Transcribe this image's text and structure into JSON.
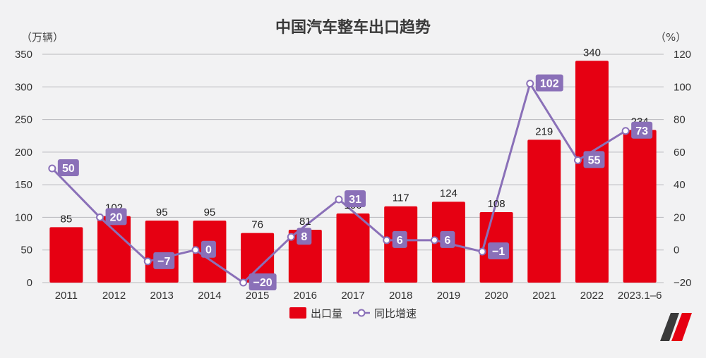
{
  "chart_data": {
    "type": "bar+line",
    "title": "中国汽车整车出口趋势",
    "left_axis_unit": "（万辆）",
    "right_axis_unit": "（%）",
    "categories": [
      "2011",
      "2012",
      "2013",
      "2014",
      "2015",
      "2016",
      "2017",
      "2018",
      "2019",
      "2020",
      "2021",
      "2022",
      "2023.1–6"
    ],
    "series": [
      {
        "name": "出口量",
        "type": "bar",
        "axis": "left",
        "color": "#e60012",
        "values": [
          85,
          102,
          95,
          95,
          76,
          81,
          106,
          117,
          124,
          108,
          219,
          340,
          234
        ]
      },
      {
        "name": "同比增速",
        "type": "line",
        "axis": "right",
        "color": "#8a70b8",
        "values": [
          50,
          20,
          -7,
          0,
          -20,
          8,
          31,
          6,
          6,
          -1,
          102,
          55,
          73
        ],
        "labels": [
          "50",
          "20",
          "−7",
          "0",
          "−20",
          "8",
          "31",
          "6",
          "6",
          "−1",
          "102",
          "55",
          "73"
        ]
      }
    ],
    "left_ylim": [
      0,
      350
    ],
    "left_ticks": [
      0,
      50,
      100,
      150,
      200,
      250,
      300,
      350
    ],
    "right_ylim": [
      -20,
      120
    ],
    "right_ticks": [
      -20,
      0,
      20,
      40,
      60,
      80,
      100,
      120
    ],
    "grid": true,
    "legend_position": "bottom-center"
  },
  "legend": {
    "bar_label": "出口量",
    "line_label": "同比增速"
  },
  "logo": {
    "color_dark": "#3a3a3a",
    "color_accent": "#e60012"
  }
}
